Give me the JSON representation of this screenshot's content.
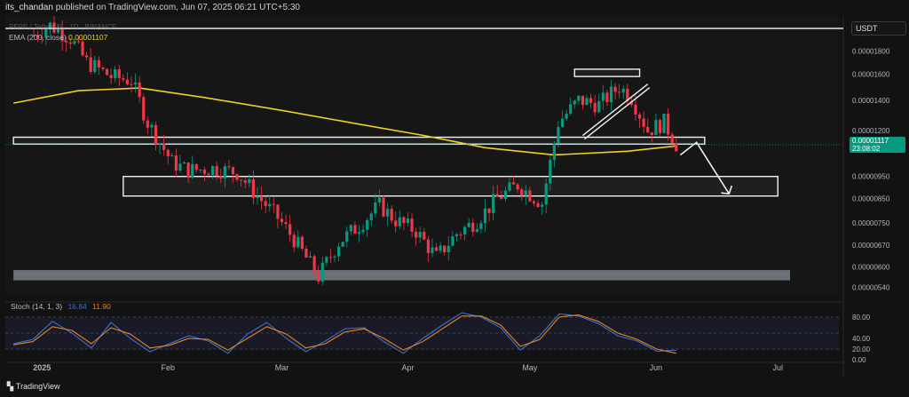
{
  "header": {
    "author": "its_chandan",
    "published_text": "published on TradingView.com, Jun 07, 2025 06:21 UTC+5:30"
  },
  "legend": {
    "symbol_line": "PEPE / TetherUS · 1D · BINANCE",
    "ema_label": "EMA (200, close)",
    "ema_value": "0.00001107"
  },
  "stoch": {
    "label": "Stoch (14, 1, 3)",
    "k_value": "16.84",
    "d_value": "11.90",
    "levels": [
      "80.00",
      "40.00",
      "20.00",
      "0.00"
    ]
  },
  "price_axis": {
    "currency": "USDT",
    "current_price": "0.00001117",
    "countdown": "23:08:02",
    "ticks": [
      "0.00001800",
      "0.00001600",
      "0.00001400",
      "0.00001200",
      "0.00000950",
      "0.00000850",
      "0.00000750",
      "0.00000670",
      "0.00000600",
      "0.00000540"
    ]
  },
  "time_axis": {
    "labels": [
      "2025",
      "Feb",
      "Mar",
      "Apr",
      "May",
      "Jun",
      "Jul"
    ]
  },
  "footer": {
    "brand": "TradingView"
  },
  "colors": {
    "up": "#089981",
    "down": "#f23645",
    "ema": "#f0d020",
    "stoch_k": "#3b6fd4",
    "stoch_d": "#e8851c",
    "background": "#121212"
  },
  "chart_data": {
    "type": "candlestick",
    "title": "PEPE / TetherUS · 1D · BINANCE",
    "y_scale": "log",
    "ylim": [
      5.2e-06,
      2.15e-05
    ],
    "current_price": 1.117e-05,
    "ema_200": 1.107e-05,
    "close_path": [
      [
        "2024-12-30",
        1.95e-05
      ],
      [
        "2025-01-03",
        2.05e-05
      ],
      [
        "2025-01-08",
        1.92e-05
      ],
      [
        "2025-01-12",
        1.7e-05
      ],
      [
        "2025-01-18",
        1.58e-05
      ],
      [
        "2025-01-23",
        1.55e-05
      ],
      [
        "2025-01-27",
        1.25e-05
      ],
      [
        "2025-02-02",
        1.02e-05
      ],
      [
        "2025-02-06",
        9.8e-06
      ],
      [
        "2025-02-12",
        9.9e-06
      ],
      [
        "2025-02-18",
        9.7e-06
      ],
      [
        "2025-02-23",
        8.6e-06
      ],
      [
        "2025-02-28",
        7.7e-06
      ],
      [
        "2025-03-04",
        6.9e-06
      ],
      [
        "2025-03-10",
        5.7e-06
      ],
      [
        "2025-03-15",
        6.8e-06
      ],
      [
        "2025-03-20",
        7.4e-06
      ],
      [
        "2025-03-25",
        8.2e-06
      ],
      [
        "2025-03-29",
        7.6e-06
      ],
      [
        "2025-04-03",
        7.2e-06
      ],
      [
        "2025-04-08",
        6.3e-06
      ],
      [
        "2025-04-13",
        7.1e-06
      ],
      [
        "2025-04-18",
        7.6e-06
      ],
      [
        "2025-04-23",
        8.5e-06
      ],
      [
        "2025-04-28",
        9.1e-06
      ],
      [
        "2025-05-04",
        8.3e-06
      ],
      [
        "2025-05-08",
        1.25e-05
      ],
      [
        "2025-05-13",
        1.4e-05
      ],
      [
        "2025-05-18",
        1.37e-05
      ],
      [
        "2025-05-23",
        1.5e-05
      ],
      [
        "2025-05-26",
        1.42e-05
      ],
      [
        "2025-05-30",
        1.2e-05
      ],
      [
        "2025-06-03",
        1.25e-05
      ],
      [
        "2025-06-06",
        1.12e-05
      ]
    ],
    "ema_path": [
      [
        "2024-12-25",
        1.38e-05
      ],
      [
        "2025-01-10",
        1.47e-05
      ],
      [
        "2025-01-25",
        1.49e-05
      ],
      [
        "2025-02-10",
        1.42e-05
      ],
      [
        "2025-03-01",
        1.33e-05
      ],
      [
        "2025-03-20",
        1.24e-05
      ],
      [
        "2025-04-05",
        1.17e-05
      ],
      [
        "2025-04-20",
        1.1e-05
      ],
      [
        "2025-05-07",
        1.06e-05
      ],
      [
        "2025-05-25",
        1.08e-05
      ],
      [
        "2025-06-06",
        1.11e-05
      ]
    ],
    "zones": [
      {
        "name": "resistance-zone",
        "from": "2025-05-12",
        "to": "2025-05-28",
        "low": 1.58e-05,
        "high": 1.64e-05
      },
      {
        "name": "support-zone",
        "from": "2024-12-25",
        "to": "2025-06-13",
        "low": 1.12e-05,
        "high": 1.16e-05
      },
      {
        "name": "target-zone",
        "from": "2025-01-21",
        "to": "2025-07-01",
        "low": 8.6e-06,
        "high": 9.5e-06
      },
      {
        "name": "bottom-zone",
        "from": "2024-12-25",
        "to": "2025-07-04",
        "low": 5.6e-06,
        "high": 5.9e-06
      }
    ],
    "stoch_k_path": [
      30,
      38,
      72,
      50,
      22,
      70,
      40,
      15,
      30,
      45,
      35,
      12,
      48,
      70,
      40,
      15,
      35,
      58,
      60,
      34,
      12,
      40,
      65,
      88,
      80,
      60,
      18,
      45,
      86,
      82,
      68,
      45,
      35,
      16,
      18
    ],
    "stoch_d_path": [
      28,
      34,
      62,
      55,
      30,
      60,
      48,
      22,
      27,
      40,
      38,
      18,
      40,
      62,
      48,
      22,
      30,
      52,
      58,
      40,
      18,
      34,
      58,
      82,
      82,
      65,
      25,
      38,
      80,
      84,
      72,
      50,
      38,
      20,
      12
    ],
    "stoch_range": [
      0,
      100
    ]
  }
}
